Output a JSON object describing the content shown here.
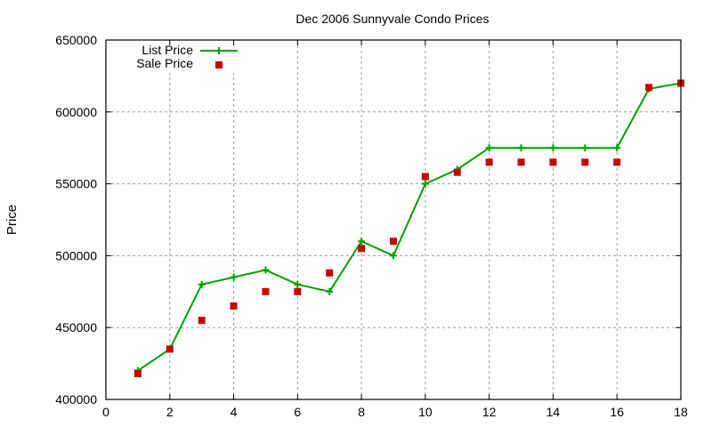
{
  "chart_data": {
    "type": "line",
    "title": "Dec 2006 Sunnyvale Condo Prices",
    "xlabel": "",
    "ylabel": "Price",
    "xlim": [
      0,
      18
    ],
    "ylim": [
      400000,
      650000
    ],
    "xticks": [
      0,
      2,
      4,
      6,
      8,
      10,
      12,
      14,
      16,
      18
    ],
    "yticks": [
      400000,
      450000,
      500000,
      550000,
      600000,
      650000
    ],
    "grid": true,
    "legend_position": "top-left",
    "x": [
      1,
      2,
      3,
      4,
      5,
      6,
      7,
      8,
      9,
      10,
      11,
      12,
      13,
      14,
      15,
      16,
      17,
      18
    ],
    "series": [
      {
        "name": "List Price",
        "style": "linespoints",
        "marker": "plus",
        "color": "#00a000",
        "values": [
          420000,
          435000,
          480000,
          485000,
          490000,
          480000,
          475000,
          510000,
          500000,
          550000,
          560000,
          575000,
          575000,
          575000,
          575000,
          575000,
          616000,
          620000
        ]
      },
      {
        "name": "Sale Price",
        "style": "points",
        "marker": "square",
        "color": "#cc0000",
        "values": [
          418000,
          435000,
          455000,
          465000,
          475000,
          475000,
          488000,
          505000,
          510000,
          555000,
          558000,
          565000,
          565000,
          565000,
          565000,
          565000,
          617000,
          620000
        ]
      }
    ]
  }
}
